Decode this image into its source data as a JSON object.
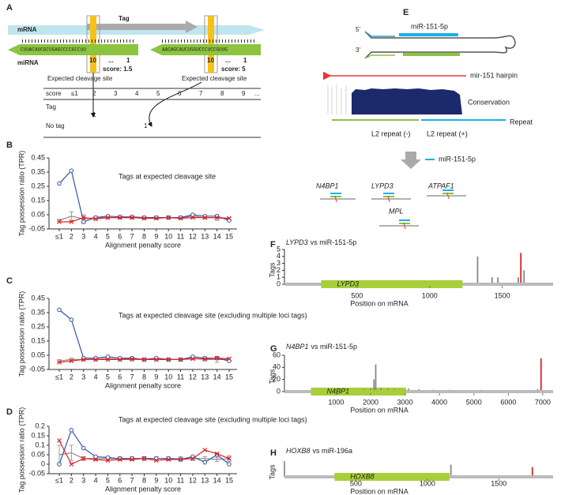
{
  "panel_a": {
    "letter": "A",
    "mrna": "mRNA",
    "tag": "Tag",
    "mirna": "miRNA",
    "sequences": [
      "CUUACAUCGCUGAGCCCCGCCUU",
      "AACAGCAUCUGGUCCCUCCGUUG"
    ],
    "positions": [
      [
        "10",
        "...",
        "1"
      ],
      [
        "10",
        "...",
        "1"
      ]
    ],
    "scores": [
      "score: 1.5",
      "score: 5"
    ],
    "cleavage": [
      "Expected cleavage site",
      "Expected cleavage site"
    ],
    "table": {
      "header": [
        "score",
        "≤1",
        "2",
        "3",
        "4",
        "5",
        "6",
        "7",
        "8",
        "9",
        "..."
      ],
      "rows": [
        [
          "Tag",
          "1"
        ],
        [
          "No tag",
          "1"
        ]
      ]
    }
  },
  "panel_e": {
    "letter": "E",
    "five": "5'",
    "three": "3'",
    "mirna": "miR-151-5p",
    "hairpin": "mir-151 hairpin",
    "conservation": "Conservation",
    "repeat": "Repeat",
    "repeat_minus": "L2 repeat (-)",
    "repeat_plus": "L2 repeat (+)",
    "legend": "miR-151-5p",
    "genes": [
      "N4BP1",
      "LYPD3",
      "ATPAF1",
      "MPL"
    ]
  },
  "chart_data": [
    {
      "type": "line",
      "letter": "B",
      "annotation": "Tags at expected cleavage site",
      "categories": [
        "≤1",
        "2",
        "3",
        "4",
        "5",
        "6",
        "7",
        "8",
        "9",
        "10",
        "11",
        "12",
        "13",
        "14",
        "15"
      ],
      "xlabel": "Alignment penalty score",
      "ylabel": "Tag possession ratio (TPR)",
      "ylim": [
        -0.05,
        0.45
      ],
      "yticks": [
        -0.05,
        0.05,
        0.15,
        0.25,
        0.35,
        0.45
      ],
      "series": [
        {
          "color": "#888888",
          "marker": "none",
          "values": [
            0.01,
            0.04,
            0.02,
            0.03,
            0.03,
            0.03,
            0.03,
            0.03,
            0.03,
            0.03,
            0.03,
            0.04,
            0.03,
            0.03,
            0.02
          ],
          "errors": [
            0.01,
            0.03,
            0.03,
            0.01,
            0.01,
            0.01,
            0.01,
            0.01,
            0.01,
            0.01,
            0.01,
            0.01,
            0.01,
            0.02,
            0.01
          ]
        },
        {
          "color": "#3355aa",
          "marker": "circle",
          "values": [
            0.27,
            0.36,
            0.0,
            0.03,
            0.04,
            0.035,
            0.035,
            0.03,
            0.03,
            0.03,
            0.03,
            0.05,
            0.04,
            0.04,
            0.01
          ]
        },
        {
          "color": "#dd2222",
          "marker": "x",
          "values": [
            0,
            0,
            0.03,
            0.02,
            0.03,
            0.03,
            0.03,
            0.025,
            0.025,
            0.03,
            0.025,
            0.03,
            0.03,
            0.03,
            0.025
          ]
        }
      ]
    },
    {
      "type": "line",
      "letter": "C",
      "annotation": "Tags at expected cleavage site (excluding multiple loci tags)",
      "categories": [
        "≤1",
        "2",
        "3",
        "4",
        "5",
        "6",
        "7",
        "8",
        "9",
        "10",
        "11",
        "12",
        "13",
        "14",
        "15"
      ],
      "xlabel": "Alignment penalty score",
      "ylabel": "Tag possession ratio (TPR)",
      "ylim": [
        -0.05,
        0.45
      ],
      "yticks": [
        -0.05,
        0.05,
        0.15,
        0.25,
        0.35,
        0.45
      ],
      "series": [
        {
          "color": "#888888",
          "marker": "none",
          "values": [
            0.01,
            0.02,
            0.02,
            0.02,
            0.03,
            0.02,
            0.02,
            0.02,
            0.02,
            0.02,
            0.02,
            0.03,
            0.02,
            0.02,
            0.02
          ],
          "errors": [
            0.01,
            0.01,
            0.01,
            0.01,
            0.01,
            0.01,
            0.01,
            0.01,
            0.01,
            0.01,
            0.01,
            0.01,
            0.01,
            0.02,
            0.01
          ]
        },
        {
          "color": "#3355aa",
          "marker": "circle",
          "values": [
            0.37,
            0.3,
            0.03,
            0.03,
            0.04,
            0.03,
            0.03,
            0.02,
            0.03,
            0.02,
            0.02,
            0.04,
            0.03,
            0.03,
            0.01
          ]
        },
        {
          "color": "#dd2222",
          "marker": "x",
          "values": [
            0,
            0.01,
            0.02,
            0.02,
            0.02,
            0.02,
            0.025,
            0.02,
            0.02,
            0.02,
            0.02,
            0.025,
            0.025,
            0.03,
            0.025
          ]
        }
      ]
    },
    {
      "type": "line",
      "letter": "D",
      "annotation": "Tags at expected cleavage site (excluding multiple loci tags)",
      "categories": [
        "≤1",
        "2",
        "3",
        "4",
        "5",
        "6",
        "7",
        "8",
        "9",
        "10",
        "11",
        "12",
        "13",
        "14",
        "15"
      ],
      "xlabel": "Alignment penalty score",
      "ylabel": "Tag possession ratio (TPR)",
      "ylim": [
        -0.05,
        0.2
      ],
      "yticks": [
        -0.05,
        0,
        0.05,
        0.1,
        0.15,
        0.2
      ],
      "series": [
        {
          "color": "#888888",
          "marker": "none",
          "values": [
            0.05,
            0.06,
            0.03,
            0.03,
            0.03,
            0.03,
            0.03,
            0.03,
            0.03,
            0.03,
            0.03,
            0.03,
            0.03,
            0.025,
            0.03
          ],
          "errors": [
            0.05,
            0.04,
            0.01,
            0.01,
            0.01,
            0.01,
            0.01,
            0.01,
            0.01,
            0.01,
            0.01,
            0.01,
            0.01,
            0.01,
            0.015
          ]
        },
        {
          "color": "#3355aa",
          "marker": "circle",
          "values": [
            0,
            0.18,
            0.085,
            0.04,
            0.035,
            0.03,
            0.03,
            0.03,
            0.03,
            0.03,
            0.025,
            0.04,
            0.01,
            0.05,
            0
          ]
        },
        {
          "color": "#dd2222",
          "marker": "x",
          "values": [
            0.125,
            0,
            0.03,
            0.025,
            0.02,
            0.025,
            0.025,
            0.03,
            0.02,
            0.025,
            0.025,
            0.03,
            0.075,
            0.055,
            0.03
          ]
        }
      ]
    },
    {
      "type": "bar",
      "letter": "F",
      "title": {
        "gene": "LYPD3",
        "text": "vs miR-151-5p"
      },
      "xlabel": "Position on mRNA",
      "ylabel": "Tags",
      "xlim": [
        0,
        1850
      ],
      "xticks": [
        500,
        1000,
        1500
      ],
      "ylim": [
        0,
        5
      ],
      "yticks": [
        0,
        1,
        2,
        3,
        4,
        5
      ],
      "gene": {
        "label": "LYPD3",
        "start": 253,
        "end": 1226,
        "color": "#a8cf3a"
      },
      "series": [
        {
          "color": "#888888",
          "x": [
            1330,
            1430,
            1470,
            1610,
            1650
          ],
          "values": [
            4,
            1,
            1,
            1,
            2
          ]
        },
        {
          "color": "#dd2222",
          "x": [
            1628
          ],
          "values": [
            4.5
          ]
        }
      ]
    },
    {
      "type": "bar",
      "letter": "G",
      "title": {
        "gene": "N4BP1",
        "text": "vs miR-151-5p"
      },
      "xlabel": "Position on mRNA",
      "ylabel": "Tags",
      "xlim": [
        -500,
        7300
      ],
      "xticks": [
        1000,
        2000,
        3000,
        4000,
        5000,
        6000,
        7000
      ],
      "ylim": [
        0,
        60
      ],
      "yticks": [
        0,
        20,
        40,
        60
      ],
      "gene": {
        "label": "N4BP1",
        "start": 270,
        "end": 3030,
        "color": "#a8cf3a"
      },
      "series": [
        {
          "color": "#888888",
          "x": [
            1300,
            1800,
            2000,
            2100,
            2150,
            2300,
            2500,
            2700,
            3100,
            3400,
            3800,
            4300,
            5200,
            5500,
            6100,
            6600,
            6850
          ],
          "values": [
            3,
            4,
            5,
            20,
            45,
            6,
            5,
            4,
            5,
            4,
            3,
            3,
            3,
            2,
            2,
            2,
            4
          ]
        },
        {
          "color": "#dd2222",
          "x": [
            6950
          ],
          "values": [
            55
          ]
        }
      ]
    },
    {
      "type": "bar",
      "letter": "H",
      "title": {
        "gene": "HOXB8",
        "text": "vs miR-196a"
      },
      "xlabel": "Position on mRNA",
      "ylabel": "Tags",
      "xlim": [
        0,
        1880
      ],
      "xticks": [
        500,
        1000,
        1500
      ],
      "ylim": [
        0,
        1.3
      ],
      "yticks": [],
      "gene": {
        "label": "HOXB8",
        "start": 350,
        "end": 1155,
        "color": "#a8cf3a"
      },
      "series": [
        {
          "color": "#888888",
          "x": [
            1165
          ],
          "values": [
            1
          ]
        },
        {
          "color": "#dd2222",
          "x": [
            1735
          ],
          "values": [
            0.8
          ]
        }
      ]
    }
  ]
}
